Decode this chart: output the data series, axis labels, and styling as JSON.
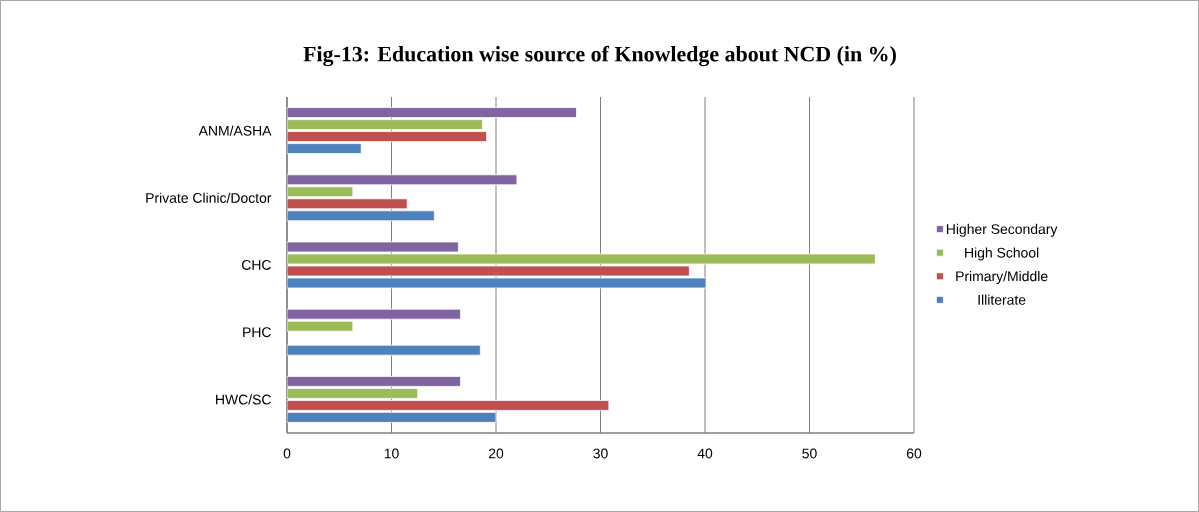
{
  "chart_data": {
    "type": "bar",
    "orientation": "horizontal",
    "title": "Fig-13: Education wise source of Knowledge about NCD (in %)",
    "categories": [
      "ANM/ASHA",
      "Private Clinic/Doctor",
      "CHC",
      "PHC",
      "HWC/SC"
    ],
    "series": [
      {
        "name": "Illiterate",
        "color": "#4f81bd",
        "values": [
          7.1,
          14.1,
          40.1,
          18.5,
          20.0
        ]
      },
      {
        "name": "Primary/Middle",
        "color": "#c0504d",
        "values": [
          19.1,
          11.5,
          38.5,
          null,
          30.8
        ]
      },
      {
        "name": "High School",
        "color": "#9bbb59",
        "values": [
          18.7,
          6.3,
          56.3,
          6.3,
          12.5
        ]
      },
      {
        "name": "Higher Secondary",
        "color": "#8064a2",
        "values": [
          27.7,
          22.0,
          16.4,
          16.6,
          16.6
        ]
      }
    ],
    "xlim": [
      0,
      60
    ],
    "xticks": [
      0,
      10,
      20,
      30,
      40,
      50,
      60
    ],
    "grid": "x",
    "legend": "right"
  }
}
